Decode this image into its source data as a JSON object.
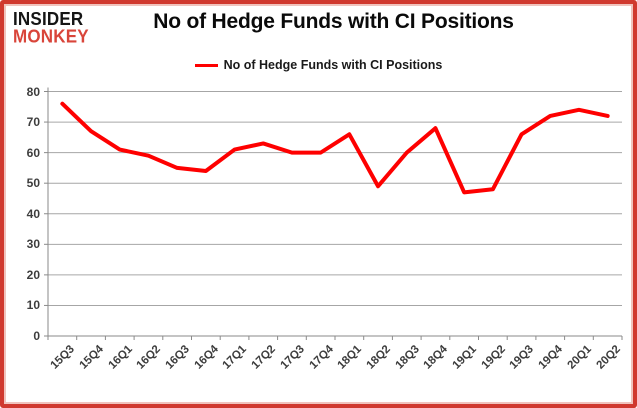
{
  "header": {
    "logo_line1": "INSIDER",
    "logo_line2": "MONKEY",
    "title": "No of Hedge Funds with CI Positions"
  },
  "legend": {
    "label": "No of Hedge Funds with CI Positions"
  },
  "colors": {
    "series": "#fe0000",
    "logo_black": "#151515",
    "logo_red": "#d9453a",
    "frame": "#d0392f",
    "frame_inner": "#f0c3bd",
    "gridline": "#a6a6a6",
    "axis": "#8a8a8a",
    "tick_label": "#3d3d3d"
  },
  "chart_data": {
    "type": "line",
    "title": "No of Hedge Funds with CI Positions",
    "legend_entries": [
      "No of Hedge Funds with CI Positions"
    ],
    "legend_position": "top-center",
    "categories": [
      "15Q3",
      "15Q4",
      "16Q1",
      "16Q2",
      "16Q3",
      "16Q4",
      "17Q1",
      "17Q2",
      "17Q3",
      "17Q4",
      "18Q1",
      "18Q2",
      "18Q3",
      "18Q4",
      "19Q1",
      "19Q2",
      "19Q3",
      "19Q4",
      "20Q1",
      "20Q2"
    ],
    "values": [
      76,
      67,
      61,
      59,
      55,
      54,
      61,
      63,
      60,
      60,
      66,
      49,
      60,
      68,
      47,
      48,
      66,
      72,
      74,
      72
    ],
    "xlabel": "",
    "ylabel": "",
    "ylim": [
      0,
      80
    ],
    "yticks": [
      0,
      10,
      20,
      30,
      40,
      50,
      60,
      70,
      80
    ],
    "grid": true
  }
}
